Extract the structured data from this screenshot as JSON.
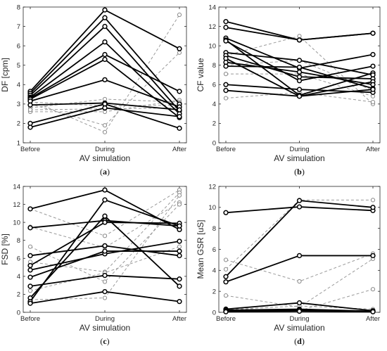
{
  "chart_data": [
    {
      "type": "line",
      "panel_label": "a",
      "categories": [
        "Before",
        "During",
        "After"
      ],
      "xlabel": "AV simulation",
      "ylabel": "DF [cpm]",
      "ylim": [
        1,
        8
      ],
      "yticks": [
        1,
        2,
        3,
        4,
        5,
        6,
        7,
        8
      ],
      "grid": false,
      "solid_series": [
        {
          "values": [
            3.65,
            7.85,
            5.85
          ]
        },
        {
          "values": [
            3.55,
            7.45,
            3.0
          ]
        },
        {
          "values": [
            3.45,
            7.0,
            2.65
          ]
        },
        {
          "values": [
            3.35,
            6.2,
            2.5
          ]
        },
        {
          "values": [
            3.3,
            5.55,
            3.65
          ]
        },
        {
          "values": [
            3.25,
            5.3,
            2.3
          ]
        },
        {
          "values": [
            3.15,
            4.25,
            2.85
          ]
        },
        {
          "values": [
            2.95,
            3.05,
            2.7
          ]
        },
        {
          "values": [
            2.0,
            3.0,
            1.75
          ]
        },
        {
          "values": [
            1.8,
            2.8,
            2.35
          ]
        }
      ],
      "dashed_series": [
        {
          "values": [
            3.2,
            1.55,
            7.6
          ]
        },
        {
          "values": [
            3.0,
            1.9,
            5.65
          ]
        },
        {
          "values": [
            2.6,
            2.6,
            3.2
          ]
        },
        {
          "values": [
            2.8,
            3.25,
            3.1
          ]
        },
        {
          "values": [
            3.1,
            2.9,
            2.95
          ]
        },
        {
          "values": [
            2.7,
            2.75,
            2.8
          ]
        }
      ]
    },
    {
      "type": "line",
      "panel_label": "b",
      "categories": [
        "Before",
        "During",
        "After"
      ],
      "xlabel": "AV simulation",
      "ylabel": "CF value",
      "ylim": [
        0,
        14
      ],
      "yticks": [
        0,
        2,
        4,
        6,
        8,
        10,
        12,
        14
      ],
      "grid": false,
      "solid_series": [
        {
          "values": [
            12.5,
            10.6,
            11.3
          ]
        },
        {
          "values": [
            11.9,
            10.6,
            11.3
          ]
        },
        {
          "values": [
            10.8,
            7.7,
            9.1
          ]
        },
        {
          "values": [
            10.6,
            4.9,
            7.2
          ]
        },
        {
          "values": [
            10.5,
            6.4,
            7.9
          ]
        },
        {
          "values": [
            9.3,
            8.5,
            7.0
          ]
        },
        {
          "values": [
            9.0,
            6.8,
            6.6
          ]
        },
        {
          "values": [
            8.7,
            4.8,
            6.3
          ]
        },
        {
          "values": [
            8.3,
            7.3,
            6.0
          ]
        },
        {
          "values": [
            7.9,
            7.8,
            5.6
          ]
        },
        {
          "values": [
            6.0,
            5.5,
            5.2
          ]
        },
        {
          "values": [
            5.4,
            4.8,
            5.5
          ]
        }
      ],
      "dashed_series": [
        {
          "values": [
            9.0,
            11.0,
            4.0
          ]
        },
        {
          "values": [
            7.1,
            7.1,
            4.8
          ]
        },
        {
          "values": [
            4.6,
            5.2,
            4.2
          ]
        },
        {
          "values": [
            8.0,
            8.5,
            5.4
          ]
        }
      ]
    },
    {
      "type": "line",
      "panel_label": "c",
      "categories": [
        "Before",
        "During",
        "After"
      ],
      "xlabel": "AV simulation",
      "ylabel": "FSD [%]",
      "ylim": [
        0,
        14
      ],
      "yticks": [
        0,
        2,
        4,
        6,
        8,
        10,
        12,
        14
      ],
      "grid": false,
      "solid_series": [
        {
          "values": [
            11.5,
            13.6,
            9.2
          ]
        },
        {
          "values": [
            9.4,
            10.2,
            9.6
          ]
        },
        {
          "values": [
            6.3,
            7.4,
            6.3
          ]
        },
        {
          "values": [
            5.2,
            10.0,
            9.9
          ]
        },
        {
          "values": [
            4.7,
            6.5,
            7.9
          ]
        },
        {
          "values": [
            3.9,
            6.8,
            6.8
          ]
        },
        {
          "values": [
            2.9,
            4.1,
            3.7
          ]
        },
        {
          "values": [
            1.6,
            10.7,
            2.9
          ]
        },
        {
          "values": [
            1.2,
            12.5,
            9.6
          ]
        },
        {
          "values": [
            1.0,
            2.3,
            1.2
          ]
        }
      ],
      "dashed_series": [
        {
          "values": [
            11.5,
            8.5,
            13.6
          ]
        },
        {
          "values": [
            9.5,
            7.2,
            12.2
          ]
        },
        {
          "values": [
            7.3,
            3.4,
            12.0
          ]
        },
        {
          "values": [
            5.6,
            4.5,
            13.3
          ]
        },
        {
          "values": [
            1.4,
            1.6,
            13.0
          ]
        },
        {
          "values": [
            2.4,
            4.4,
            7.3
          ]
        }
      ]
    },
    {
      "type": "line",
      "panel_label": "d",
      "categories": [
        "Before",
        "During",
        "After"
      ],
      "xlabel": "AV simulation",
      "ylabel": "Mean GSR [uS]",
      "ylim": [
        0,
        12
      ],
      "yticks": [
        0,
        2,
        4,
        6,
        8,
        10,
        12
      ],
      "grid": false,
      "solid_series": [
        {
          "values": [
            9.5,
            10.05,
            9.7
          ]
        },
        {
          "values": [
            3.4,
            10.65,
            10.0
          ]
        },
        {
          "values": [
            2.9,
            5.4,
            5.4
          ]
        },
        {
          "values": [
            0.3,
            0.9,
            0.15
          ]
        },
        {
          "values": [
            0.2,
            0.3,
            0.1
          ]
        },
        {
          "values": [
            0.1,
            0.2,
            0.1
          ]
        },
        {
          "values": [
            0.05,
            0.1,
            0.05
          ]
        }
      ],
      "dashed_series": [
        {
          "values": [
            5.0,
            2.95,
            5.6
          ]
        },
        {
          "values": [
            4.1,
            10.7,
            10.7
          ]
        },
        {
          "values": [
            1.6,
            0.5,
            5.1
          ]
        },
        {
          "values": [
            0.35,
            0.15,
            2.2
          ]
        },
        {
          "values": [
            0.25,
            0.6,
            0.3
          ]
        }
      ]
    }
  ]
}
